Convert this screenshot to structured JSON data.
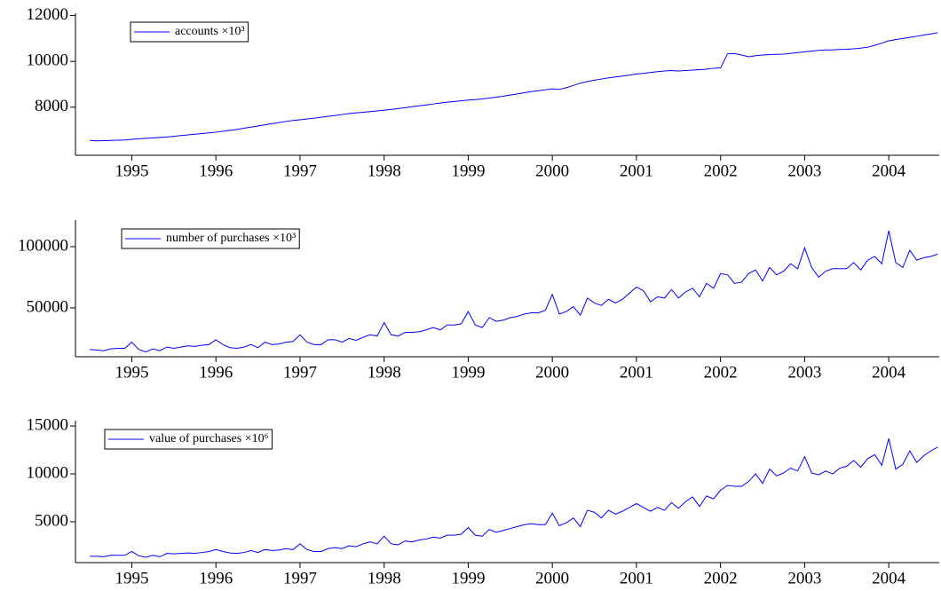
{
  "chart_data": [
    {
      "type": "line",
      "xlim": [
        1994.33,
        2004.6
      ],
      "xticks": [
        1995,
        1996,
        1997,
        1998,
        1999,
        2000,
        2001,
        2002,
        2003,
        2004
      ],
      "ylim": [
        5900,
        12100
      ],
      "yticks": [
        8000,
        10000,
        12000
      ],
      "legend": "upper left",
      "x": [
        1994.5,
        1994.583,
        1994.667,
        1994.75,
        1994.833,
        1994.917,
        1995,
        1995.083,
        1995.167,
        1995.25,
        1995.333,
        1995.417,
        1995.5,
        1995.583,
        1995.667,
        1995.75,
        1995.833,
        1995.917,
        1996,
        1996.083,
        1996.167,
        1996.25,
        1996.333,
        1996.417,
        1996.5,
        1996.583,
        1996.667,
        1996.75,
        1996.833,
        1996.917,
        1997,
        1997.083,
        1997.167,
        1997.25,
        1997.333,
        1997.417,
        1997.5,
        1997.583,
        1997.667,
        1997.75,
        1997.833,
        1997.917,
        1998,
        1998.083,
        1998.167,
        1998.25,
        1998.333,
        1998.417,
        1998.5,
        1998.583,
        1998.667,
        1998.75,
        1998.833,
        1998.917,
        1999,
        1999.083,
        1999.167,
        1999.25,
        1999.333,
        1999.417,
        1999.5,
        1999.583,
        1999.667,
        1999.75,
        1999.833,
        1999.917,
        2000,
        2000.083,
        2000.167,
        2000.25,
        2000.333,
        2000.417,
        2000.5,
        2000.583,
        2000.667,
        2000.75,
        2000.833,
        2000.917,
        2001,
        2001.083,
        2001.167,
        2001.25,
        2001.333,
        2001.417,
        2001.5,
        2001.583,
        2001.667,
        2001.75,
        2001.833,
        2001.917,
        2002,
        2002.083,
        2002.167,
        2002.25,
        2002.333,
        2002.417,
        2002.5,
        2002.583,
        2002.667,
        2002.75,
        2002.833,
        2002.917,
        2003,
        2003.083,
        2003.167,
        2003.25,
        2003.333,
        2003.417,
        2003.5,
        2003.583,
        2003.667,
        2003.75,
        2003.833,
        2003.917,
        2004,
        2004.083,
        2004.167,
        2004.25,
        2004.333,
        2004.417,
        2004.5,
        2004.583
      ],
      "series": [
        {
          "name": "accounts ×10³",
          "color": "#0000ff",
          "values": [
            6550,
            6530,
            6540,
            6550,
            6560,
            6570,
            6600,
            6620,
            6640,
            6660,
            6680,
            6700,
            6730,
            6760,
            6790,
            6820,
            6850,
            6880,
            6910,
            6950,
            6990,
            7030,
            7080,
            7130,
            7180,
            7230,
            7280,
            7330,
            7380,
            7420,
            7450,
            7490,
            7520,
            7560,
            7600,
            7640,
            7680,
            7720,
            7750,
            7780,
            7810,
            7840,
            7870,
            7900,
            7940,
            7980,
            8020,
            8060,
            8100,
            8140,
            8180,
            8220,
            8250,
            8280,
            8310,
            8330,
            8360,
            8400,
            8440,
            8480,
            8530,
            8580,
            8630,
            8680,
            8720,
            8760,
            8800,
            8780,
            8850,
            8950,
            9050,
            9120,
            9180,
            9230,
            9280,
            9320,
            9360,
            9400,
            9450,
            9480,
            9520,
            9550,
            9580,
            9600,
            9580,
            9600,
            9620,
            9640,
            9660,
            9700,
            9720,
            10330,
            10340,
            10280,
            10200,
            10250,
            10280,
            10300,
            10310,
            10320,
            10350,
            10380,
            10420,
            10450,
            10480,
            10500,
            10500,
            10520,
            10530,
            10550,
            10580,
            10620,
            10700,
            10800,
            10900,
            10950,
            11000,
            11050,
            11100,
            11150,
            11200,
            11250
          ]
        }
      ]
    },
    {
      "type": "line",
      "xlim": [
        1994.33,
        2004.6
      ],
      "xticks": [
        1995,
        1996,
        1997,
        1998,
        1999,
        2000,
        2001,
        2002,
        2003,
        2004
      ],
      "ylim": [
        10100,
        121700
      ],
      "yticks": [
        50000,
        100000
      ],
      "legend": "upper left",
      "x": [
        1994.5,
        1994.583,
        1994.667,
        1994.75,
        1994.833,
        1994.917,
        1995,
        1995.083,
        1995.167,
        1995.25,
        1995.333,
        1995.417,
        1995.5,
        1995.583,
        1995.667,
        1995.75,
        1995.833,
        1995.917,
        1996,
        1996.083,
        1996.167,
        1996.25,
        1996.333,
        1996.417,
        1996.5,
        1996.583,
        1996.667,
        1996.75,
        1996.833,
        1996.917,
        1997,
        1997.083,
        1997.167,
        1997.25,
        1997.333,
        1997.417,
        1997.5,
        1997.583,
        1997.667,
        1997.75,
        1997.833,
        1997.917,
        1998,
        1998.083,
        1998.167,
        1998.25,
        1998.333,
        1998.417,
        1998.5,
        1998.583,
        1998.667,
        1998.75,
        1998.833,
        1998.917,
        1999,
        1999.083,
        1999.167,
        1999.25,
        1999.333,
        1999.417,
        1999.5,
        1999.583,
        1999.667,
        1999.75,
        1999.833,
        1999.917,
        2000,
        2000.083,
        2000.167,
        2000.25,
        2000.333,
        2000.417,
        2000.5,
        2000.583,
        2000.667,
        2000.75,
        2000.833,
        2000.917,
        2001,
        2001.083,
        2001.167,
        2001.25,
        2001.333,
        2001.417,
        2001.5,
        2001.583,
        2001.667,
        2001.75,
        2001.833,
        2001.917,
        2002,
        2002.083,
        2002.167,
        2002.25,
        2002.333,
        2002.417,
        2002.5,
        2002.583,
        2002.667,
        2002.75,
        2002.833,
        2002.917,
        2003,
        2003.083,
        2003.167,
        2003.25,
        2003.333,
        2003.417,
        2003.5,
        2003.583,
        2003.667,
        2003.75,
        2003.833,
        2003.917,
        2004,
        2004.083,
        2004.167,
        2004.25,
        2004.333,
        2004.417,
        2004.5,
        2004.583
      ],
      "series": [
        {
          "name": "number of purchases ×10³",
          "color": "#0000ff",
          "values": [
            16000,
            15500,
            15000,
            16500,
            17000,
            17000,
            22000,
            16000,
            14000,
            16500,
            15000,
            18000,
            17000,
            18000,
            19000,
            18500,
            19500,
            20000,
            24000,
            20000,
            17500,
            17000,
            18000,
            20000,
            17500,
            22000,
            20000,
            20500,
            22000,
            22500,
            28000,
            22000,
            20000,
            20000,
            24000,
            24000,
            22000,
            25000,
            23500,
            26000,
            28000,
            27000,
            38000,
            28000,
            27000,
            30000,
            30000,
            30500,
            32000,
            34000,
            32000,
            36000,
            36000,
            37000,
            47000,
            36000,
            34000,
            42000,
            39000,
            40000,
            42000,
            43000,
            45000,
            46000,
            46000,
            48000,
            61000,
            45000,
            47000,
            51000,
            44000,
            58000,
            54000,
            52000,
            57000,
            54000,
            57000,
            62000,
            67000,
            64000,
            55000,
            59000,
            58000,
            65000,
            58000,
            63000,
            66000,
            59000,
            70000,
            66000,
            78000,
            77000,
            70000,
            71000,
            78000,
            81000,
            72000,
            83000,
            77000,
            80000,
            86000,
            82000,
            99000,
            83000,
            75000,
            80000,
            82000,
            82000,
            82000,
            87000,
            81000,
            89000,
            92000,
            86000,
            113000,
            87000,
            83000,
            97000,
            89000,
            91000,
            92000,
            94000
          ]
        }
      ]
    },
    {
      "type": "line",
      "xlim": [
        1994.33,
        2004.6
      ],
      "xticks": [
        1995,
        1996,
        1997,
        1998,
        1999,
        2000,
        2001,
        2002,
        2003,
        2004
      ],
      "ylim": [
        740,
        15560
      ],
      "yticks": [
        5000,
        10000,
        15000
      ],
      "legend": "upper left",
      "x": [
        1994.5,
        1994.583,
        1994.667,
        1994.75,
        1994.833,
        1994.917,
        1995,
        1995.083,
        1995.167,
        1995.25,
        1995.333,
        1995.417,
        1995.5,
        1995.583,
        1995.667,
        1995.75,
        1995.833,
        1995.917,
        1996,
        1996.083,
        1996.167,
        1996.25,
        1996.333,
        1996.417,
        1996.5,
        1996.583,
        1996.667,
        1996.75,
        1996.833,
        1996.917,
        1997,
        1997.083,
        1997.167,
        1997.25,
        1997.333,
        1997.417,
        1997.5,
        1997.583,
        1997.667,
        1997.75,
        1997.833,
        1997.917,
        1998,
        1998.083,
        1998.167,
        1998.25,
        1998.333,
        1998.417,
        1998.5,
        1998.583,
        1998.667,
        1998.75,
        1998.833,
        1998.917,
        1999,
        1999.083,
        1999.167,
        1999.25,
        1999.333,
        1999.417,
        1999.5,
        1999.583,
        1999.667,
        1999.75,
        1999.833,
        1999.917,
        2000,
        2000.083,
        2000.167,
        2000.25,
        2000.333,
        2000.417,
        2000.5,
        2000.583,
        2000.667,
        2000.75,
        2000.833,
        2000.917,
        2001,
        2001.083,
        2001.167,
        2001.25,
        2001.333,
        2001.417,
        2001.5,
        2001.583,
        2001.667,
        2001.75,
        2001.833,
        2001.917,
        2002,
        2002.083,
        2002.167,
        2002.25,
        2002.333,
        2002.417,
        2002.5,
        2002.583,
        2002.667,
        2002.75,
        2002.833,
        2002.917,
        2003,
        2003.083,
        2003.167,
        2003.25,
        2003.333,
        2003.417,
        2003.5,
        2003.583,
        2003.667,
        2003.75,
        2003.833,
        2003.917,
        2004,
        2004.083,
        2004.167,
        2004.25,
        2004.333,
        2004.417,
        2004.5,
        2004.583
      ],
      "series": [
        {
          "name": "value of purchases ×10⁶",
          "color": "#0000ff",
          "values": [
            1400,
            1400,
            1350,
            1500,
            1500,
            1500,
            1900,
            1450,
            1300,
            1500,
            1350,
            1700,
            1650,
            1700,
            1750,
            1700,
            1800,
            1900,
            2100,
            1900,
            1750,
            1700,
            1800,
            2000,
            1800,
            2100,
            2000,
            2050,
            2200,
            2100,
            2700,
            2100,
            1900,
            1900,
            2200,
            2300,
            2200,
            2500,
            2400,
            2700,
            2900,
            2700,
            3500,
            2700,
            2600,
            3000,
            2900,
            3100,
            3200,
            3400,
            3300,
            3600,
            3600,
            3700,
            4400,
            3600,
            3500,
            4200,
            3900,
            4100,
            4300,
            4500,
            4700,
            4800,
            4700,
            4700,
            5900,
            4600,
            4900,
            5400,
            4500,
            6200,
            6000,
            5400,
            6200,
            5800,
            6100,
            6500,
            6900,
            6500,
            6100,
            6500,
            6200,
            7000,
            6400,
            7100,
            7600,
            6600,
            7700,
            7400,
            8300,
            8800,
            8700,
            8700,
            9200,
            10000,
            9000,
            10500,
            9800,
            10100,
            10600,
            10300,
            11800,
            10100,
            9900,
            10300,
            10000,
            10600,
            10800,
            11400,
            10700,
            11600,
            12000,
            10900,
            13700,
            10500,
            11000,
            12400,
            11200,
            11900,
            12400,
            12800
          ]
        }
      ]
    }
  ]
}
